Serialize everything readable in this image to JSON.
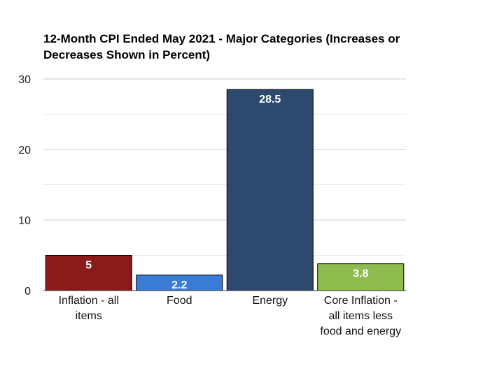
{
  "chart_data": {
    "type": "bar",
    "title": "12-Month CPI Ended May 2021 - Major Categories (Increases or Decreases Shown in Percent)",
    "categories": [
      "Inflation - all items",
      "Food",
      "Energy",
      "Core Inflation - all items less food and energy"
    ],
    "values": [
      5,
      2.2,
      28.5,
      3.8
    ],
    "data_labels": [
      "5",
      "2.2",
      "28.5",
      "3.8"
    ],
    "bar_colors": [
      "#8b1a1a",
      "#3a7bd5",
      "#2d4a6e",
      "#8fbc4f"
    ],
    "ylim": [
      0,
      30
    ],
    "yticks": [
      0,
      10,
      20,
      30
    ],
    "xlabel": "",
    "ylabel": "",
    "grid": true,
    "legend": "none"
  }
}
